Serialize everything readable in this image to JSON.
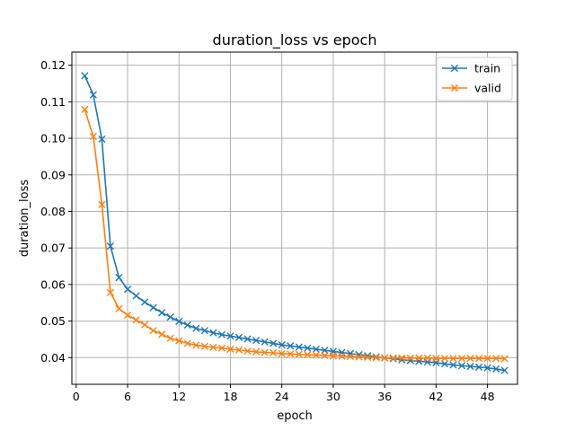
{
  "chart_data": {
    "type": "line",
    "title": "duration_loss vs epoch",
    "xlabel": "epoch",
    "ylabel": "duration_loss",
    "xlim": [
      -0.5,
      51.5
    ],
    "ylim": [
      0.0327,
      0.1236
    ],
    "xticks": [
      0,
      6,
      12,
      18,
      24,
      30,
      36,
      42,
      48
    ],
    "yticks": [
      0.04,
      0.05,
      0.06,
      0.07,
      0.08,
      0.09,
      0.1,
      0.11,
      0.12
    ],
    "ytick_labels": [
      "0.04",
      "0.05",
      "0.06",
      "0.07",
      "0.08",
      "0.09",
      "0.10",
      "0.11",
      "0.12"
    ],
    "grid": true,
    "legend_position": "top-right",
    "marker": "x",
    "x": [
      1,
      2,
      3,
      4,
      5,
      6,
      7,
      8,
      9,
      10,
      11,
      12,
      13,
      14,
      15,
      16,
      17,
      18,
      19,
      20,
      21,
      22,
      23,
      24,
      25,
      26,
      27,
      28,
      29,
      30,
      31,
      32,
      33,
      34,
      35,
      36,
      37,
      38,
      39,
      40,
      41,
      42,
      43,
      44,
      45,
      46,
      47,
      48,
      49,
      50
    ],
    "series": [
      {
        "name": "train",
        "color": "#1f77b4",
        "values": [
          0.1171,
          0.1119,
          0.0998,
          0.0705,
          0.0619,
          0.0587,
          0.0569,
          0.0552,
          0.0537,
          0.0523,
          0.0511,
          0.0499,
          0.0489,
          0.048,
          0.0474,
          0.0468,
          0.0463,
          0.0459,
          0.0455,
          0.0451,
          0.0447,
          0.0443,
          0.0439,
          0.0435,
          0.0432,
          0.0429,
          0.0426,
          0.0423,
          0.042,
          0.0417,
          0.0414,
          0.0411,
          0.0408,
          0.0405,
          0.0402,
          0.0399,
          0.0397,
          0.0394,
          0.0392,
          0.039,
          0.0388,
          0.0386,
          0.0383,
          0.038,
          0.0378,
          0.0376,
          0.0374,
          0.0372,
          0.0369,
          0.0365
        ]
      },
      {
        "name": "valid",
        "color": "#ff7f0e",
        "values": [
          0.1079,
          0.1005,
          0.0819,
          0.0578,
          0.0534,
          0.0516,
          0.0503,
          0.049,
          0.0474,
          0.0464,
          0.0453,
          0.0446,
          0.0439,
          0.0434,
          0.0431,
          0.0428,
          0.0426,
          0.0423,
          0.0421,
          0.0418,
          0.0416,
          0.0414,
          0.0413,
          0.0411,
          0.041,
          0.0409,
          0.0408,
          0.0407,
          0.0406,
          0.0405,
          0.0404,
          0.0403,
          0.0402,
          0.0401,
          0.04,
          0.0399,
          0.0399,
          0.0399,
          0.0399,
          0.0399,
          0.0399,
          0.0398,
          0.0398,
          0.0398,
          0.0398,
          0.0398,
          0.0398,
          0.0398,
          0.0398,
          0.0397
        ]
      }
    ]
  }
}
